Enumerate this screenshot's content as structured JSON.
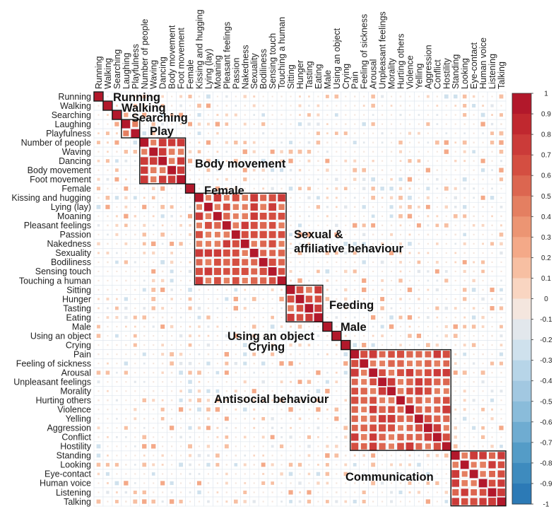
{
  "chart_data": {
    "type": "heatmap",
    "title": "",
    "variables": [
      "Running",
      "Walking",
      "Searching",
      "Laughing",
      "Playfulness",
      "Number of people",
      "Waving",
      "Dancing",
      "Body movement",
      "Foot movement",
      "Female",
      "Kissing and hugging",
      "Lying (lay)",
      "Moaning",
      "Pleasant feelings",
      "Passion",
      "Nakedness",
      "Sexuality",
      "Bodiliness",
      "Sensing touch",
      "Touching a human",
      "Sitting",
      "Hunger",
      "Tasting",
      "Eating",
      "Male",
      "Using an object",
      "Crying",
      "Pain",
      "Feeling of sickness",
      "Arousal",
      "Unpleasant feelings",
      "Morality",
      "Hurting others",
      "Violence",
      "Yelling",
      "Aggression",
      "Conflict",
      "Hostility",
      "Standing",
      "Looking",
      "Eye-contact",
      "Human voice",
      "Listening",
      "Talking"
    ],
    "clusters": [
      {
        "label": "Running",
        "start": 0,
        "end": 0
      },
      {
        "label": "Walking",
        "start": 1,
        "end": 1
      },
      {
        "label": "Searching",
        "start": 2,
        "end": 2
      },
      {
        "label": "Play",
        "start": 3,
        "end": 4
      },
      {
        "label": "Body movement",
        "start": 5,
        "end": 9
      },
      {
        "label": "Female",
        "start": 10,
        "end": 10
      },
      {
        "label": "Sexual & affiliative behaviour",
        "start": 11,
        "end": 20
      },
      {
        "label": "Feeding",
        "start": 21,
        "end": 24
      },
      {
        "label": "Male",
        "start": 25,
        "end": 25
      },
      {
        "label": "Using an object",
        "start": 26,
        "end": 26
      },
      {
        "label": "Crying",
        "start": 27,
        "end": 27
      },
      {
        "label": "Antisocial behaviour",
        "start": 28,
        "end": 38
      },
      {
        "label": "Communication",
        "start": 39,
        "end": 44
      }
    ],
    "colorbar": {
      "range": [
        -1,
        1
      ],
      "ticks": [
        "1",
        "0.9",
        "0.8",
        "0.7",
        "0.6",
        "0.5",
        "0.4",
        "0.3",
        "0.2",
        "0.1",
        "0",
        "-0.1",
        "-0.2",
        "-0.3",
        "-0.4",
        "-0.5",
        "-0.6",
        "-0.7",
        "-0.8",
        "-0.9",
        "-1"
      ],
      "colors": [
        "#b2182b",
        "#c0282f",
        "#cb3b39",
        "#d44e41",
        "#dc6650",
        "#e47f61",
        "#ec9573",
        "#f4a988",
        "#f7bfa2",
        "#f9d5c1",
        "#f4e6de",
        "#e2e7ec",
        "#cfe1ed",
        "#b7d5e8",
        "#a2c8e1",
        "#8abcda",
        "#6facd1",
        "#549cc7",
        "#3e8bbe",
        "#2c7ab6",
        "#1f66aa"
      ]
    },
    "notes": "Correlation matrix; square marker size and color encode Pearson r; values approximate, read from color/size."
  }
}
